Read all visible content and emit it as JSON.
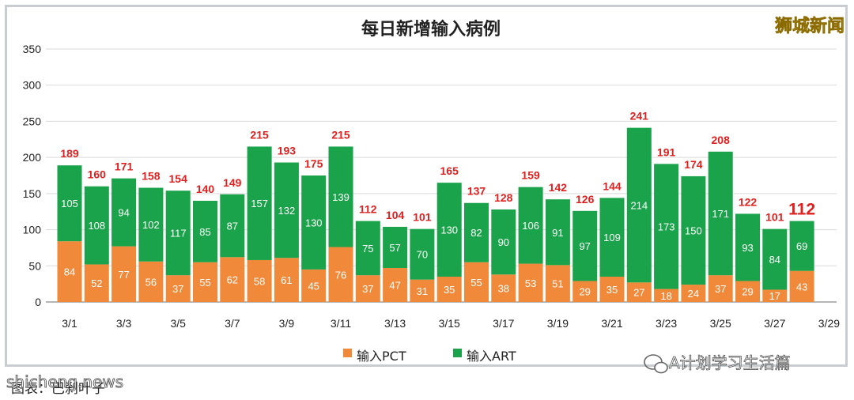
{
  "chart_data": {
    "type": "bar",
    "stacked": true,
    "title": "每日新增输入病例",
    "categories": [
      "3/1",
      "3/2",
      "3/3",
      "3/4",
      "3/5",
      "3/6",
      "3/7",
      "3/8",
      "3/9",
      "3/10",
      "3/11",
      "3/12",
      "3/13",
      "3/14",
      "3/15",
      "3/16",
      "3/17",
      "3/18",
      "3/19",
      "3/20",
      "3/21",
      "3/22",
      "3/23",
      "3/24",
      "3/25",
      "3/26",
      "3/27",
      "3/28"
    ],
    "x_tick_labels": [
      "3/1",
      "3/3",
      "3/5",
      "3/7",
      "3/9",
      "3/11",
      "3/13",
      "3/15",
      "3/17",
      "3/19",
      "3/21",
      "3/23",
      "3/25",
      "3/27",
      "3/29"
    ],
    "series": [
      {
        "name": "输入PCT",
        "color": "#f08a3a",
        "values": [
          84,
          52,
          77,
          56,
          37,
          55,
          62,
          58,
          61,
          45,
          76,
          37,
          47,
          31,
          35,
          55,
          38,
          53,
          51,
          29,
          35,
          27,
          18,
          24,
          37,
          29,
          17,
          43
        ]
      },
      {
        "name": "输入ART",
        "color": "#1aa34a",
        "values": [
          105,
          108,
          94,
          102,
          117,
          85,
          87,
          157,
          132,
          130,
          139,
          75,
          57,
          70,
          130,
          82,
          90,
          106,
          91,
          97,
          109,
          214,
          173,
          150,
          171,
          93,
          84,
          69
        ]
      }
    ],
    "totals": [
      189,
      160,
      171,
      158,
      154,
      140,
      149,
      215,
      193,
      175,
      215,
      112,
      104,
      101,
      165,
      137,
      128,
      159,
      142,
      126,
      144,
      241,
      191,
      174,
      208,
      122,
      101,
      112
    ],
    "ylim": [
      0,
      350
    ],
    "yticks": [
      0,
      50,
      100,
      150,
      200,
      250,
      300,
      350
    ],
    "grid": true,
    "legend_position": "bottom"
  },
  "branding": {
    "logo_text": "狮城新闻",
    "watermark_site": "shicheng.news",
    "wechat_account": "A计划学习生活篇",
    "source_caption": "图表：巴刹叶子"
  },
  "colors": {
    "pct": "#f08a3a",
    "art": "#1aa34a",
    "total_label": "#e0201f",
    "frame": "#c9cdd2"
  }
}
